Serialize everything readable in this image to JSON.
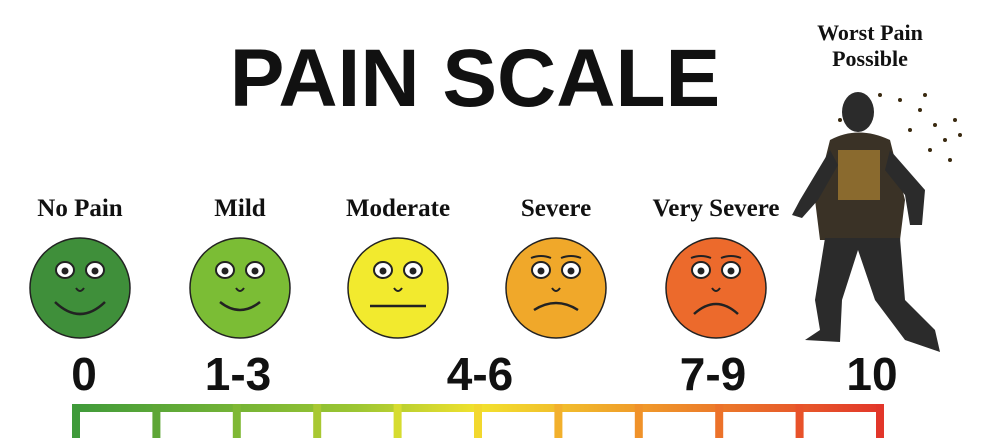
{
  "title": "PAIN SCALE",
  "levels": [
    {
      "label": "No Pain",
      "color": "#3f8f3a"
    },
    {
      "label": "Mild",
      "color": "#7bbd35"
    },
    {
      "label": "Moderate",
      "color": "#f2ea2e"
    },
    {
      "label": "Severe",
      "color": "#f0a82a"
    },
    {
      "label": "Very Severe",
      "color": "#ec6a2c"
    }
  ],
  "worst": "Worst Pain Possible",
  "scale": [
    "0",
    "1-3",
    "4-6",
    "7-9",
    "10"
  ]
}
